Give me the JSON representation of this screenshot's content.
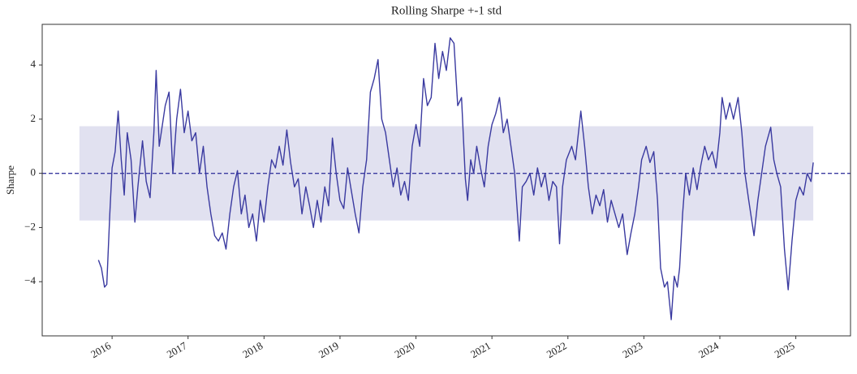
{
  "chart_data": {
    "type": "line",
    "title": "Rolling Sharpe +-1 std",
    "ylabel": "Sharpe",
    "xlim": [
      2015.08,
      2025.72
    ],
    "xticks": [
      2016,
      2017,
      2018,
      2019,
      2020,
      2021,
      2022,
      2023,
      2024,
      2025
    ],
    "ylim": [
      -6,
      5.5
    ],
    "yticks": [
      {
        "value": -4,
        "label": "−4"
      },
      {
        "value": -2,
        "label": "−2"
      },
      0,
      2,
      4
    ],
    "grid": false,
    "mean": 0,
    "band": {
      "upper": 1.74,
      "lower": -1.74,
      "x": [
        2015.57,
        2025.23
      ],
      "color": "#e1e1f0"
    },
    "x": [
      2015.82,
      2015.86,
      2015.9,
      2015.93,
      2015.97,
      2016.0,
      2016.04,
      2016.08,
      2016.12,
      2016.16,
      2016.2,
      2016.25,
      2016.3,
      2016.34,
      2016.4,
      2016.45,
      2016.5,
      2016.55,
      2016.58,
      2016.62,
      2016.7,
      2016.75,
      2016.8,
      2016.85,
      2016.9,
      2016.95,
      2017.0,
      2017.05,
      2017.1,
      2017.15,
      2017.2,
      2017.25,
      2017.3,
      2017.35,
      2017.4,
      2017.45,
      2017.5,
      2017.55,
      2017.6,
      2017.65,
      2017.7,
      2017.75,
      2017.8,
      2017.85,
      2017.9,
      2017.95,
      2018.0,
      2018.05,
      2018.1,
      2018.15,
      2018.2,
      2018.25,
      2018.3,
      2018.35,
      2018.4,
      2018.45,
      2018.5,
      2018.55,
      2018.6,
      2018.65,
      2018.7,
      2018.75,
      2018.8,
      2018.85,
      2018.9,
      2018.95,
      2019.0,
      2019.05,
      2019.1,
      2019.14,
      2019.2,
      2019.25,
      2019.3,
      2019.35,
      2019.4,
      2019.45,
      2019.5,
      2019.55,
      2019.6,
      2019.65,
      2019.7,
      2019.75,
      2019.8,
      2019.85,
      2019.9,
      2019.95,
      2020.0,
      2020.05,
      2020.1,
      2020.15,
      2020.2,
      2020.25,
      2020.3,
      2020.35,
      2020.4,
      2020.45,
      2020.5,
      2020.55,
      2020.6,
      2020.65,
      2020.68,
      2020.72,
      2020.76,
      2020.8,
      2020.85,
      2020.9,
      2020.95,
      2021.0,
      2021.05,
      2021.1,
      2021.15,
      2021.2,
      2021.25,
      2021.3,
      2021.36,
      2021.4,
      2021.45,
      2021.5,
      2021.55,
      2021.6,
      2021.65,
      2021.7,
      2021.75,
      2021.8,
      2021.85,
      2021.89,
      2021.93,
      2021.98,
      2022.05,
      2022.1,
      2022.17,
      2022.22,
      2022.27,
      2022.32,
      2022.37,
      2022.42,
      2022.47,
      2022.52,
      2022.57,
      2022.62,
      2022.67,
      2022.72,
      2022.78,
      2022.83,
      2022.88,
      2022.93,
      2022.97,
      2023.03,
      2023.08,
      2023.13,
      2023.18,
      2023.22,
      2023.27,
      2023.31,
      2023.36,
      2023.4,
      2023.44,
      2023.47,
      2023.51,
      2023.55,
      2023.6,
      2023.65,
      2023.7,
      2023.75,
      2023.8,
      2023.85,
      2023.9,
      2023.95,
      2024.0,
      2024.03,
      2024.08,
      2024.13,
      2024.18,
      2024.24,
      2024.29,
      2024.33,
      2024.38,
      2024.45,
      2024.5,
      2024.55,
      2024.6,
      2024.67,
      2024.71,
      2024.75,
      2024.8,
      2024.85,
      2024.9,
      2024.95,
      2025.0,
      2025.05,
      2025.1,
      2025.15,
      2025.2,
      2025.23
    ],
    "series": [
      {
        "color": "#3a3aa0",
        "values": [
          -3.2,
          -3.5,
          -4.2,
          -4.1,
          -1.5,
          0.2,
          0.8,
          2.3,
          0.5,
          -0.8,
          1.5,
          0.5,
          -1.8,
          -0.5,
          1.2,
          -0.3,
          -0.9,
          1.5,
          3.8,
          1.0,
          2.5,
          3.0,
          0.0,
          2.0,
          3.1,
          1.5,
          2.3,
          1.2,
          1.5,
          0.0,
          1.0,
          -0.5,
          -1.5,
          -2.3,
          -2.5,
          -2.2,
          -2.8,
          -1.5,
          -0.5,
          0.1,
          -1.5,
          -0.8,
          -2.0,
          -1.5,
          -2.5,
          -1.0,
          -1.8,
          -0.5,
          0.5,
          0.2,
          1.0,
          0.3,
          1.6,
          0.4,
          -0.5,
          -0.2,
          -1.5,
          -0.5,
          -1.2,
          -2.0,
          -1.0,
          -1.8,
          -0.5,
          -1.2,
          1.3,
          0.0,
          -1.0,
          -1.3,
          0.2,
          -0.5,
          -1.5,
          -2.2,
          -0.5,
          0.5,
          3.0,
          3.5,
          4.2,
          2.0,
          1.5,
          0.5,
          -0.5,
          0.2,
          -0.8,
          -0.3,
          -1.0,
          1.0,
          1.8,
          1.0,
          3.5,
          2.5,
          2.8,
          4.8,
          3.5,
          4.5,
          3.8,
          5.0,
          4.8,
          2.5,
          2.8,
          -0.2,
          -1.0,
          0.5,
          0.0,
          1.0,
          0.2,
          -0.5,
          1.0,
          1.8,
          2.2,
          2.8,
          1.5,
          2.0,
          1.0,
          0.0,
          -2.5,
          -0.5,
          -0.3,
          0.0,
          -0.8,
          0.2,
          -0.5,
          0.0,
          -1.0,
          -0.3,
          -0.5,
          -2.6,
          -0.5,
          0.5,
          1.0,
          0.5,
          2.3,
          1.0,
          -0.5,
          -1.5,
          -0.8,
          -1.2,
          -0.6,
          -1.8,
          -1.0,
          -1.5,
          -2.0,
          -1.5,
          -3.0,
          -2.2,
          -1.5,
          -0.5,
          0.5,
          1.0,
          0.4,
          0.8,
          -1.0,
          -3.5,
          -4.2,
          -4.0,
          -5.4,
          -3.8,
          -4.2,
          -3.5,
          -1.5,
          0.0,
          -0.8,
          0.2,
          -0.6,
          0.3,
          1.0,
          0.5,
          0.8,
          0.2,
          1.5,
          2.8,
          2.0,
          2.6,
          2.0,
          2.8,
          1.5,
          0.0,
          -1.0,
          -2.3,
          -1.0,
          0.0,
          1.0,
          1.7,
          0.5,
          0.0,
          -0.5,
          -2.8,
          -4.3,
          -2.5,
          -1.0,
          -0.5,
          -0.8,
          0.0,
          -0.3,
          0.4
        ]
      }
    ]
  }
}
